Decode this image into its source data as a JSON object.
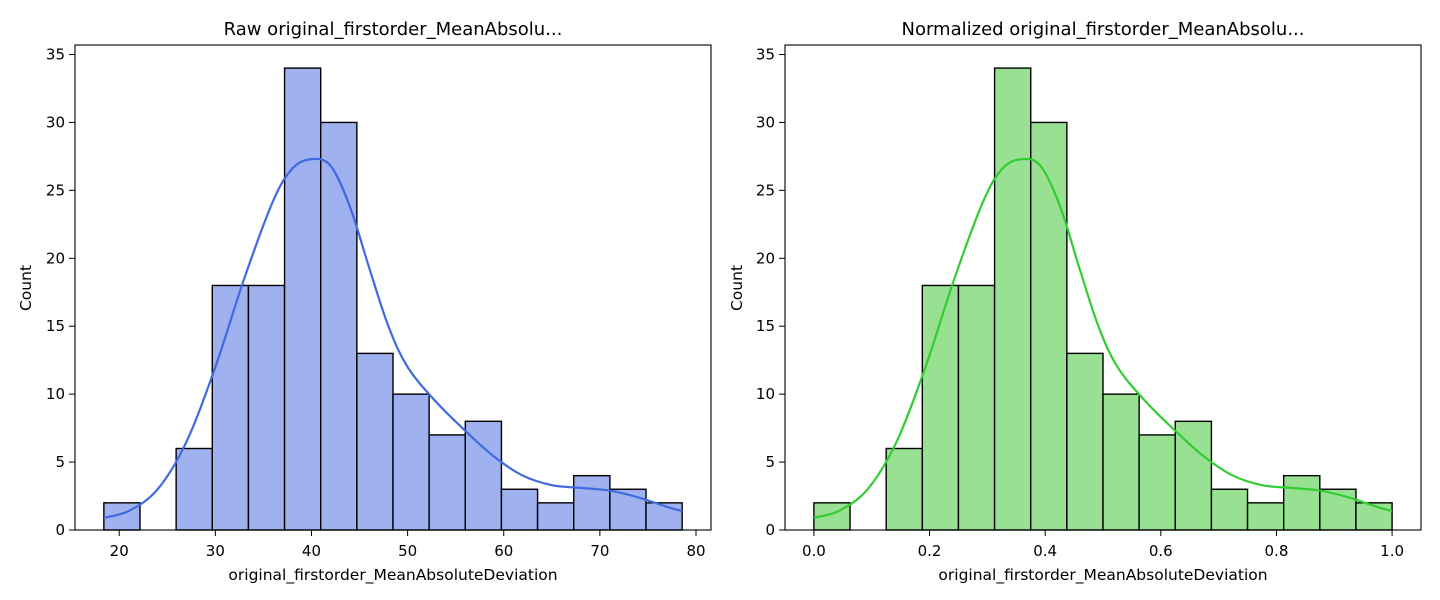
{
  "chart_data": [
    {
      "type": "bar",
      "title": "Raw original_firstorder_MeanAbsolu...",
      "xlabel": "original_firstorder_MeanAbsoluteDeviation",
      "ylabel": "Count",
      "bin_edges": [
        18.4,
        22.16,
        25.92,
        29.68,
        33.44,
        37.2,
        40.96,
        44.72,
        48.48,
        52.24,
        56.0,
        59.76,
        63.52,
        67.28,
        71.04,
        74.8,
        78.56
      ],
      "counts": [
        2,
        0,
        6,
        18,
        18,
        34,
        30,
        13,
        10,
        7,
        8,
        3,
        2,
        4,
        3,
        2
      ],
      "kde": {
        "x": [
          18.4,
          21,
          24,
          27,
          30,
          33,
          36,
          38,
          40,
          42,
          44,
          46,
          48,
          50,
          53,
          56,
          59,
          62,
          65,
          68,
          71,
          74,
          77,
          78.56
        ],
        "y": [
          0.9,
          1.4,
          3.0,
          6.5,
          12.0,
          18.5,
          24.2,
          26.6,
          27.3,
          26.8,
          23.8,
          19.3,
          15.0,
          12.0,
          9.4,
          7.3,
          5.4,
          4.0,
          3.3,
          3.1,
          2.9,
          2.4,
          1.7,
          1.4
        ]
      },
      "xlim": [
        15.4,
        81.56
      ],
      "ylim": [
        0,
        35.7
      ],
      "xticks": [
        "20",
        "30",
        "40",
        "50",
        "60",
        "70",
        "80"
      ],
      "yticks": [
        "0",
        "5",
        "10",
        "15",
        "20",
        "25",
        "30",
        "35"
      ],
      "bar_color": "#9fb1ef",
      "line_color": "#4169e1"
    },
    {
      "type": "bar",
      "title": "Normalized original_firstorder_MeanAbsolu...",
      "xlabel": "original_firstorder_MeanAbsoluteDeviation",
      "ylabel": "Count",
      "bin_edges": [
        0.0,
        0.0625,
        0.125,
        0.1875,
        0.25,
        0.3125,
        0.375,
        0.4375,
        0.5,
        0.5625,
        0.625,
        0.6875,
        0.75,
        0.8125,
        0.875,
        0.9375,
        1.0
      ],
      "counts": [
        2,
        0,
        6,
        18,
        18,
        34,
        30,
        13,
        10,
        7,
        8,
        3,
        2,
        4,
        3,
        2
      ],
      "kde": {
        "x": [
          0.0,
          0.043,
          0.093,
          0.143,
          0.193,
          0.243,
          0.293,
          0.326,
          0.359,
          0.392,
          0.426,
          0.459,
          0.492,
          0.525,
          0.575,
          0.625,
          0.675,
          0.725,
          0.775,
          0.825,
          0.875,
          0.925,
          0.974,
          1.0
        ],
        "y": [
          0.9,
          1.4,
          3.0,
          6.5,
          12.0,
          18.5,
          24.2,
          26.6,
          27.3,
          26.8,
          23.8,
          19.3,
          15.0,
          12.0,
          9.4,
          7.3,
          5.4,
          4.0,
          3.3,
          3.1,
          2.9,
          2.4,
          1.7,
          1.4
        ]
      },
      "xlim": [
        -0.05,
        1.05
      ],
      "ylim": [
        0,
        35.7
      ],
      "xticks": [
        "0.0",
        "0.2",
        "0.4",
        "0.6",
        "0.8",
        "1.0"
      ],
      "yticks": [
        "0",
        "5",
        "10",
        "15",
        "20",
        "25",
        "30",
        "35"
      ],
      "bar_color": "#98e092",
      "line_color": "#32cd32"
    }
  ]
}
